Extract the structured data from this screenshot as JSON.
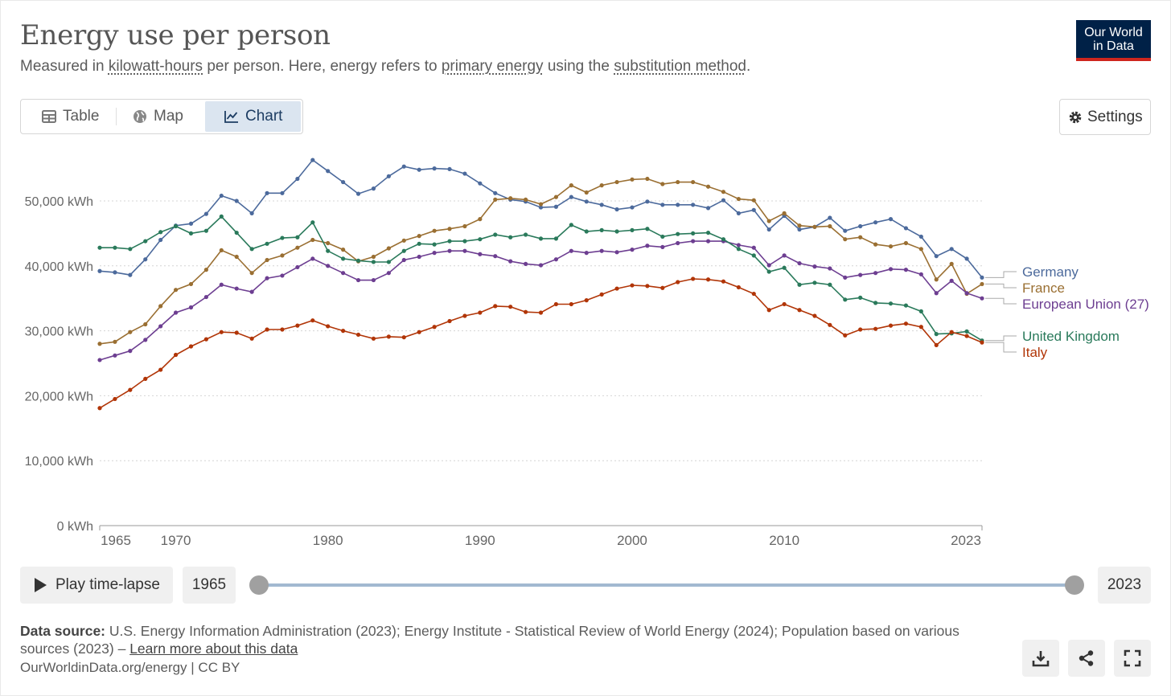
{
  "header": {
    "title": "Energy use per person",
    "subtitle_parts": [
      "Measured in ",
      "kilowatt-hours",
      " per person. Here, energy refers to ",
      "primary energy",
      " using the ",
      "substitution method",
      "."
    ],
    "logo_line1": "Our World",
    "logo_line2": "in Data"
  },
  "tabs": [
    {
      "label": "Table",
      "icon": "table-icon"
    },
    {
      "label": "Map",
      "icon": "globe-icon"
    },
    {
      "label": "Chart",
      "icon": "line-chart-icon",
      "selected": true
    }
  ],
  "settings_label": "Settings",
  "timeline": {
    "play_label": "Play time-lapse",
    "start_year": "1965",
    "end_year": "2023"
  },
  "footer": {
    "source_label": "Data source:",
    "source_text": " U.S. Energy Information Administration (2023); Energy Institute - Statistical Review of World Energy (2024); Population based on various sources (2023) – ",
    "learn_more": "Learn more about this data",
    "attribution": "OurWorldinData.org/energy | CC BY"
  },
  "actions": [
    "download-icon",
    "share-icon",
    "fullscreen-icon"
  ],
  "chart_data": {
    "type": "line",
    "title": "Energy use per person",
    "ylabel": "",
    "xlabel": "",
    "ylim": [
      0,
      56000
    ],
    "xlim": [
      1965,
      2023
    ],
    "y_ticks": [
      0,
      10000,
      20000,
      30000,
      40000,
      50000
    ],
    "y_tick_labels": [
      "0 kWh",
      "10,000 kWh",
      "20,000 kWh",
      "30,000 kWh",
      "40,000 kWh",
      "50,000 kWh"
    ],
    "x_ticks": [
      1965,
      1970,
      1980,
      1990,
      2000,
      2010,
      2023
    ],
    "x_tick_labels": [
      "1965",
      "1970",
      "1980",
      "1990",
      "2000",
      "2010",
      "2023"
    ],
    "grid": "horizontal dotted",
    "legend": "right, end-of-line labels",
    "x": [
      1965,
      1966,
      1967,
      1968,
      1969,
      1970,
      1971,
      1972,
      1973,
      1974,
      1975,
      1976,
      1977,
      1978,
      1979,
      1980,
      1981,
      1982,
      1983,
      1984,
      1985,
      1986,
      1987,
      1988,
      1989,
      1990,
      1991,
      1992,
      1993,
      1994,
      1995,
      1996,
      1997,
      1998,
      1999,
      2000,
      2001,
      2002,
      2003,
      2004,
      2005,
      2006,
      2007,
      2008,
      2009,
      2010,
      2011,
      2012,
      2013,
      2014,
      2015,
      2016,
      2017,
      2018,
      2019,
      2020,
      2021,
      2022,
      2023
    ],
    "series": [
      {
        "name": "Germany",
        "color": "#4c6a9c",
        "values": [
          39200,
          39000,
          38600,
          41000,
          44000,
          46200,
          46500,
          48000,
          50800,
          50000,
          48100,
          51200,
          51200,
          53400,
          56300,
          54600,
          52900,
          51100,
          51900,
          53800,
          55300,
          54800,
          55000,
          54900,
          54200,
          52700,
          51200,
          50200,
          49900,
          49000,
          49100,
          50600,
          49900,
          49400,
          48700,
          49000,
          49900,
          49400,
          49400,
          49400,
          48900,
          50100,
          48100,
          48600,
          45600,
          47700,
          45600,
          46000,
          47400,
          45400,
          46100,
          46700,
          47200,
          45800,
          44500,
          41500,
          42600,
          41100,
          38200
        ]
      },
      {
        "name": "France",
        "color": "#9a6f32",
        "values": [
          28000,
          28300,
          29800,
          31000,
          33800,
          36300,
          37200,
          39400,
          42400,
          41400,
          38900,
          40900,
          41600,
          42800,
          44000,
          43500,
          42500,
          40700,
          41400,
          42700,
          43900,
          44600,
          45400,
          45700,
          46100,
          47200,
          50200,
          50400,
          50200,
          49500,
          50600,
          52400,
          51300,
          52400,
          52900,
          53300,
          53400,
          52600,
          52900,
          52900,
          52200,
          51400,
          50300,
          50100,
          46900,
          48100,
          46200,
          46000,
          46100,
          44100,
          44400,
          43300,
          43000,
          43500,
          42600,
          37900,
          40300,
          35700,
          37200
        ]
      },
      {
        "name": "European Union (27)",
        "color": "#6d3e91",
        "values": [
          25500,
          26200,
          26900,
          28600,
          30700,
          32800,
          33600,
          35200,
          37100,
          36500,
          36000,
          38100,
          38500,
          39800,
          41100,
          40000,
          38900,
          37800,
          37800,
          38900,
          40900,
          41400,
          42000,
          42300,
          42300,
          41800,
          41500,
          40700,
          40300,
          40100,
          41000,
          42300,
          42000,
          42300,
          42100,
          42500,
          43100,
          42900,
          43500,
          43800,
          43800,
          43800,
          43200,
          42800,
          40100,
          41600,
          40400,
          39900,
          39600,
          38200,
          38600,
          38900,
          39500,
          39400,
          38700,
          35800,
          37700,
          35800,
          35000
        ]
      },
      {
        "name": "United Kingdom",
        "color": "#2a7a5b",
        "values": [
          42800,
          42800,
          42600,
          43800,
          45200,
          46100,
          45000,
          45400,
          47600,
          45100,
          42600,
          43400,
          44300,
          44400,
          46700,
          42300,
          41100,
          40800,
          40600,
          40600,
          42300,
          43400,
          43300,
          43800,
          43800,
          44100,
          44800,
          44400,
          44800,
          44200,
          44200,
          46300,
          45300,
          45500,
          45300,
          45500,
          45700,
          44500,
          44900,
          45000,
          45100,
          44100,
          42600,
          41600,
          39100,
          39700,
          37100,
          37400,
          37100,
          34800,
          35100,
          34300,
          34200,
          33900,
          33000,
          29500,
          29600,
          29900,
          28500
        ]
      },
      {
        "name": "Italy",
        "color": "#b13507",
        "values": [
          18100,
          19500,
          20900,
          22600,
          24000,
          26300,
          27600,
          28700,
          29800,
          29700,
          28800,
          30200,
          30200,
          30800,
          31600,
          30700,
          30000,
          29400,
          28800,
          29100,
          29000,
          29800,
          30600,
          31500,
          32300,
          32800,
          33800,
          33700,
          32900,
          32800,
          34100,
          34100,
          34700,
          35600,
          36500,
          37000,
          36900,
          36600,
          37500,
          38000,
          37900,
          37600,
          36700,
          35700,
          33200,
          34100,
          33200,
          32300,
          30900,
          29300,
          30200,
          30300,
          30800,
          31100,
          30600,
          27800,
          29800,
          29200,
          28200
        ]
      }
    ]
  }
}
